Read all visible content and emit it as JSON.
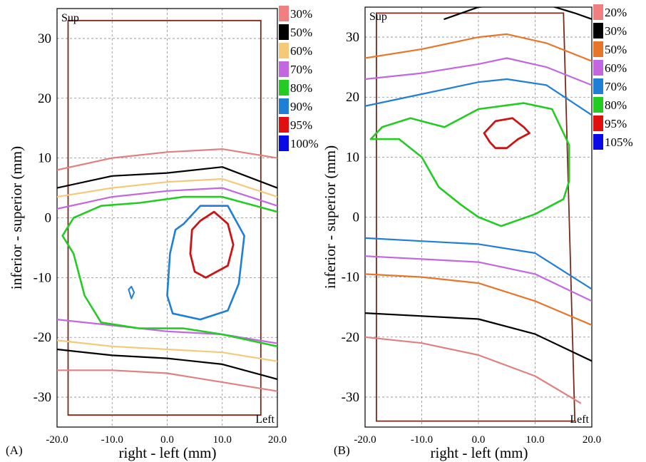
{
  "chart_data": [
    {
      "panel_label": "(A)",
      "type": "contour",
      "xlabel": "right - left (mm)",
      "ylabel": "inferior - superior (mm)",
      "xlim": [
        -20,
        20
      ],
      "ylim": [
        -35,
        35
      ],
      "xticks": [
        "-20.0",
        "-10.0",
        "0.0",
        "10.0",
        "20.0"
      ],
      "yticks": [
        "30",
        "20",
        "10",
        "0",
        "-10",
        "-20",
        "-30"
      ],
      "corner_top": "Sup",
      "corner_bottom": "Left",
      "legend": [
        {
          "label": "30%",
          "color": "#f08080"
        },
        {
          "label": "50%",
          "color": "#000000"
        },
        {
          "label": "60%",
          "color": "#f5c97a"
        },
        {
          "label": "70%",
          "color": "#c267e0"
        },
        {
          "label": "80%",
          "color": "#22cc22"
        },
        {
          "label": "90%",
          "color": "#1f7fd6"
        },
        {
          "label": "95%",
          "color": "#e01010"
        },
        {
          "label": "100%",
          "color": "#0a0ae6"
        }
      ],
      "outline": [
        [
          -18,
          33
        ],
        [
          17,
          33
        ],
        [
          17,
          -33
        ],
        [
          -18,
          -33
        ]
      ],
      "contours": [
        {
          "level": "30%",
          "color": "#e08080",
          "width": 2.2,
          "points": [
            [
              -20,
              -25.5
            ],
            [
              -10,
              -25.5
            ],
            [
              0,
              -26
            ],
            [
              10,
              -27.5
            ],
            [
              20,
              -29
            ]
          ]
        },
        {
          "level": "30%",
          "color": "#e08080",
          "width": 2.2,
          "points": [
            [
              -20,
              8
            ],
            [
              -10,
              10
            ],
            [
              0,
              11
            ],
            [
              10,
              11.5
            ],
            [
              20,
              10
            ]
          ]
        },
        {
          "level": "50%",
          "color": "#000000",
          "width": 2.2,
          "points": [
            [
              -20,
              -22
            ],
            [
              -10,
              -23
            ],
            [
              0,
              -23.5
            ],
            [
              10,
              -24.5
            ],
            [
              20,
              -27
            ]
          ]
        },
        {
          "level": "50%",
          "color": "#000000",
          "width": 2.2,
          "points": [
            [
              -20,
              5
            ],
            [
              -10,
              7
            ],
            [
              0,
              7.5
            ],
            [
              10,
              8.5
            ],
            [
              20,
              5
            ]
          ]
        },
        {
          "level": "60%",
          "color": "#f5c97a",
          "width": 2.2,
          "points": [
            [
              -20,
              -20.5
            ],
            [
              -10,
              -21.5
            ],
            [
              0,
              -22
            ],
            [
              10,
              -22.5
            ],
            [
              20,
              -24
            ]
          ]
        },
        {
          "level": "60%",
          "color": "#f5c97a",
          "width": 2.2,
          "points": [
            [
              -20,
              3.5
            ],
            [
              -10,
              5
            ],
            [
              0,
              6
            ],
            [
              10,
              6.5
            ],
            [
              20,
              3.5
            ]
          ]
        },
        {
          "level": "70%",
          "color": "#c267e0",
          "width": 2.2,
          "points": [
            [
              -20,
              -17
            ],
            [
              -10,
              -18
            ],
            [
              0,
              -19
            ],
            [
              10,
              -19.5
            ],
            [
              20,
              -21
            ]
          ]
        },
        {
          "level": "70%",
          "color": "#c267e0",
          "width": 2.2,
          "points": [
            [
              -20,
              1.5
            ],
            [
              -10,
              3.5
            ],
            [
              0,
              4.5
            ],
            [
              10,
              5
            ],
            [
              20,
              2
            ]
          ]
        },
        {
          "level": "80%",
          "color": "#22cc22",
          "width": 2.6,
          "points": [
            [
              -19,
              -3
            ],
            [
              -17,
              -6
            ],
            [
              -15,
              -13
            ],
            [
              -12,
              -17.5
            ],
            [
              -5,
              -18.5
            ],
            [
              3,
              -18.5
            ],
            [
              10,
              -19.5
            ],
            [
              20,
              -21.5
            ]
          ]
        },
        {
          "level": "80%",
          "color": "#22cc22",
          "width": 2.6,
          "points": [
            [
              -19,
              -3
            ],
            [
              -17,
              0
            ],
            [
              -12,
              2
            ],
            [
              -5,
              2.5
            ],
            [
              3,
              3.5
            ],
            [
              10,
              3.5
            ],
            [
              20,
              1
            ]
          ]
        },
        {
          "level": "90%",
          "color": "#1f7fd6",
          "width": 2.6,
          "points": [
            [
              3,
              -1
            ],
            [
              6,
              2
            ],
            [
              11,
              2
            ],
            [
              14,
              -3
            ],
            [
              13,
              -11
            ],
            [
              11,
              -15.5
            ],
            [
              6,
              -17
            ],
            [
              1,
              -16
            ],
            [
              0,
              -13
            ],
            [
              0.5,
              -6
            ],
            [
              1.5,
              -2
            ],
            [
              3,
              -1
            ]
          ]
        },
        {
          "level": "95%",
          "color": "#cc1414",
          "width": 2.8,
          "points": [
            [
              6,
              -0.5
            ],
            [
              8.5,
              1
            ],
            [
              11,
              -1
            ],
            [
              12,
              -4.5
            ],
            [
              11,
              -8
            ],
            [
              9,
              -9
            ],
            [
              7,
              -10
            ],
            [
              5,
              -9
            ],
            [
              4.2,
              -6
            ],
            [
              4.5,
              -2
            ],
            [
              6,
              -0.5
            ]
          ]
        },
        {
          "level": "100%",
          "color": "#1f7fd6",
          "width": 2.0,
          "points": [
            [
              -7,
              -12
            ],
            [
              -6.5,
              -11.5
            ],
            [
              -6,
              -12.5
            ],
            [
              -6.5,
              -13.5
            ],
            [
              -7,
              -12
            ]
          ]
        }
      ]
    },
    {
      "panel_label": "(B)",
      "type": "contour",
      "xlabel": "right - left (mm)",
      "ylabel": "inferior - superior (mm)",
      "xlim": [
        -20,
        20
      ],
      "ylim": [
        -35,
        35
      ],
      "xticks": [
        "-20.0",
        "-10.0",
        "0.0",
        "10.0",
        "20.0"
      ],
      "yticks": [
        "30",
        "20",
        "10",
        "0",
        "-10",
        "-20",
        "-30"
      ],
      "corner_top": "Sup",
      "corner_bottom": "Left",
      "legend": [
        {
          "label": "20%",
          "color": "#f08080"
        },
        {
          "label": "30%",
          "color": "#000000"
        },
        {
          "label": "50%",
          "color": "#e8762a"
        },
        {
          "label": "60%",
          "color": "#c267e0"
        },
        {
          "label": "70%",
          "color": "#1f7fd6"
        },
        {
          "label": "80%",
          "color": "#22cc22"
        },
        {
          "label": "95%",
          "color": "#e01010"
        },
        {
          "label": "105%",
          "color": "#0a0ae6"
        }
      ],
      "outline": [
        [
          -18,
          34
        ],
        [
          15,
          34
        ],
        [
          17,
          -34
        ],
        [
          -18,
          -34
        ]
      ],
      "contours": [
        {
          "level": "20%",
          "color": "#e08080",
          "width": 2.2,
          "points": [
            [
              -20,
              -20
            ],
            [
              -10,
              -21
            ],
            [
              0,
              -23
            ],
            [
              10,
              -26.5
            ],
            [
              18,
              -31
            ]
          ]
        },
        {
          "level": "30%",
          "color": "#000000",
          "width": 2.2,
          "points": [
            [
              -20,
              -16
            ],
            [
              -10,
              -16.5
            ],
            [
              0,
              -17
            ],
            [
              10,
              -19.5
            ],
            [
              20,
              -24
            ]
          ]
        },
        {
          "level": "30%",
          "color": "#000000",
          "width": 2.2,
          "points": [
            [
              -6,
              33
            ],
            [
              0,
              35
            ],
            [
              10,
              36
            ],
            [
              17,
              34
            ],
            [
              20,
              33
            ]
          ]
        },
        {
          "level": "50%",
          "color": "#e8762a",
          "width": 2.2,
          "points": [
            [
              -20,
              -9.5
            ],
            [
              -10,
              -10
            ],
            [
              0,
              -11
            ],
            [
              10,
              -14
            ],
            [
              20,
              -18
            ]
          ]
        },
        {
          "level": "50%",
          "color": "#e8762a",
          "width": 2.2,
          "points": [
            [
              -20,
              26.5
            ],
            [
              -10,
              28
            ],
            [
              0,
              30
            ],
            [
              5,
              30.5
            ],
            [
              12,
              29
            ],
            [
              20,
              26
            ]
          ]
        },
        {
          "level": "60%",
          "color": "#c267e0",
          "width": 2.2,
          "points": [
            [
              -20,
              -6.5
            ],
            [
              -10,
              -7
            ],
            [
              0,
              -7.5
            ],
            [
              10,
              -9.5
            ],
            [
              20,
              -14
            ]
          ]
        },
        {
          "level": "60%",
          "color": "#c267e0",
          "width": 2.2,
          "points": [
            [
              -20,
              23
            ],
            [
              -10,
              24
            ],
            [
              0,
              25.5
            ],
            [
              5,
              26.5
            ],
            [
              12,
              25
            ],
            [
              20,
              22
            ]
          ]
        },
        {
          "level": "70%",
          "color": "#1f7fd6",
          "width": 2.2,
          "points": [
            [
              -20,
              -3.5
            ],
            [
              -10,
              -4
            ],
            [
              0,
              -4.5
            ],
            [
              10,
              -6
            ],
            [
              20,
              -12
            ]
          ]
        },
        {
          "level": "70%",
          "color": "#1f7fd6",
          "width": 2.2,
          "points": [
            [
              -20,
              18.5
            ],
            [
              -10,
              20.5
            ],
            [
              0,
              22.5
            ],
            [
              5,
              23
            ],
            [
              12,
              22
            ],
            [
              20,
              17
            ]
          ]
        },
        {
          "level": "80%",
          "color": "#22cc22",
          "width": 2.6,
          "points": [
            [
              -19,
              13
            ],
            [
              -17,
              15
            ],
            [
              -12,
              16.5
            ],
            [
              -6,
              15
            ],
            [
              0,
              18
            ],
            [
              8,
              19
            ],
            [
              13,
              18
            ],
            [
              16,
              12
            ],
            [
              16,
              6
            ],
            [
              15,
              3
            ],
            [
              10,
              0.5
            ],
            [
              4,
              -1.5
            ],
            [
              0,
              0
            ],
            [
              -3,
              2
            ],
            [
              -7,
              5
            ],
            [
              -10,
              10
            ],
            [
              -14,
              13
            ],
            [
              -19,
              13
            ]
          ]
        },
        {
          "level": "95%",
          "color": "#cc1414",
          "width": 2.8,
          "points": [
            [
              1,
              14
            ],
            [
              3,
              16
            ],
            [
              6,
              16.5
            ],
            [
              8,
              15
            ],
            [
              9,
              14
            ],
            [
              7,
              13
            ],
            [
              5,
              11.5
            ],
            [
              3,
              11.5
            ],
            [
              2,
              12.5
            ],
            [
              1,
              14
            ]
          ]
        }
      ]
    }
  ]
}
